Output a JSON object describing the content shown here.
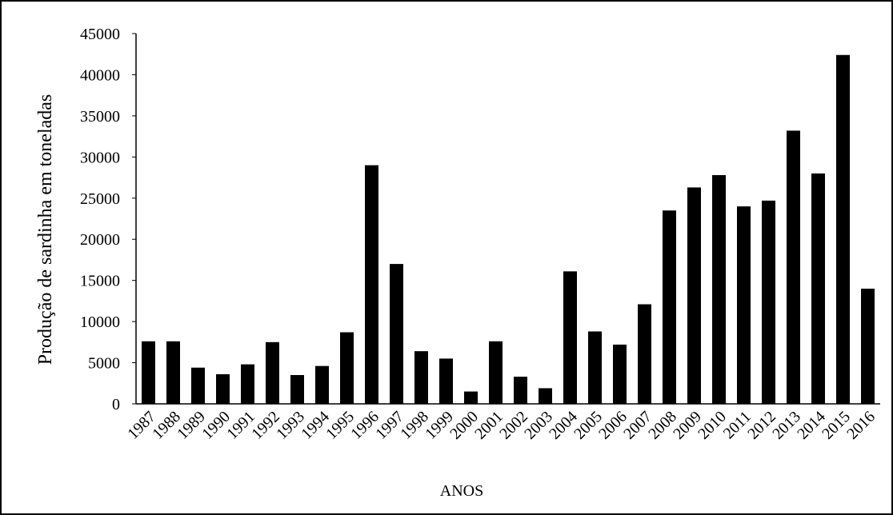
{
  "chart_data": {
    "type": "bar",
    "title": "",
    "xlabel": "ANOS",
    "ylabel": "Produção de sardinha em toneladas",
    "ylim": [
      0,
      45000
    ],
    "yticks": [
      0,
      5000,
      10000,
      15000,
      20000,
      25000,
      30000,
      35000,
      40000,
      45000
    ],
    "ytick_labels": [
      "0",
      "5000",
      "10000",
      "15000",
      "20000",
      "25000",
      "30000",
      "35000",
      "40000",
      "45000"
    ],
    "grid": false,
    "legend": "none",
    "bar_color": "#000000",
    "categories": [
      "1987",
      "1988",
      "1989",
      "1990",
      "1991",
      "1992",
      "1993",
      "1994",
      "1995",
      "1996",
      "1997",
      "1998",
      "1999",
      "2000",
      "2001",
      "2002",
      "2003",
      "2004",
      "2005",
      "2006",
      "2007",
      "2008",
      "2009",
      "2010",
      "2011",
      "2012",
      "2013",
      "2014",
      "2015",
      "2016"
    ],
    "values": [
      7600,
      7600,
      4400,
      3600,
      4800,
      7500,
      3500,
      4600,
      8700,
      29000,
      17000,
      6400,
      5500,
      1500,
      7600,
      3300,
      1900,
      16100,
      8800,
      7200,
      12100,
      23500,
      26300,
      27800,
      24000,
      24700,
      33200,
      28000,
      42400,
      14000
    ]
  }
}
